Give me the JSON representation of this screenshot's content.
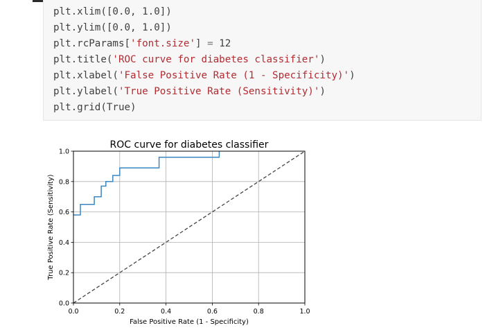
{
  "code": {
    "lines": [
      [
        {
          "t": "plt.xlim(["
        },
        {
          "t": "0.0",
          "c": "num"
        },
        {
          "t": ", "
        },
        {
          "t": "1.0",
          "c": "num"
        },
        {
          "t": "])"
        }
      ],
      [
        {
          "t": "plt.ylim(["
        },
        {
          "t": "0.0",
          "c": "num"
        },
        {
          "t": ", "
        },
        {
          "t": "1.0",
          "c": "num"
        },
        {
          "t": "])"
        }
      ],
      [
        {
          "t": "plt.rcParams["
        },
        {
          "t": "'font.size'",
          "c": "str"
        },
        {
          "t": "] "
        },
        {
          "t": "=",
          "c": "op"
        },
        {
          "t": " 12"
        }
      ],
      [
        {
          "t": "plt.title("
        },
        {
          "t": "'ROC curve for diabetes classifier'",
          "c": "str"
        },
        {
          "t": ")"
        }
      ],
      [
        {
          "t": "plt.xlabel("
        },
        {
          "t": "'False Positive Rate (1 - Specificity)'",
          "c": "str"
        },
        {
          "t": ")"
        }
      ],
      [
        {
          "t": "plt.ylabel("
        },
        {
          "t": "'True Positive Rate (Sensitivity)'",
          "c": "str"
        },
        {
          "t": ")"
        }
      ],
      [
        {
          "t": "plt.grid("
        },
        {
          "t": "True",
          "c": "kw"
        },
        {
          "t": ")"
        }
      ]
    ]
  },
  "chart_data": {
    "type": "line",
    "title": "ROC curve for diabetes classifier",
    "xlabel": "False Positive Rate (1 - Specificity)",
    "ylabel": "True Positive Rate (Sensitivity)",
    "xlim": [
      0.0,
      1.0
    ],
    "ylim": [
      0.0,
      1.0
    ],
    "xticks": [
      "0.0",
      "0.2",
      "0.4",
      "0.6",
      "0.8",
      "1.0"
    ],
    "yticks": [
      "0.0",
      "0.2",
      "0.4",
      "0.6",
      "0.8",
      "1.0"
    ],
    "grid": true,
    "series": [
      {
        "color": "#3a86c1",
        "style": "solid",
        "step_points": [
          [
            0.0,
            0.58
          ],
          [
            0.03,
            0.58
          ],
          [
            0.03,
            0.65
          ],
          [
            0.09,
            0.65
          ],
          [
            0.09,
            0.7
          ],
          [
            0.12,
            0.7
          ],
          [
            0.12,
            0.77
          ],
          [
            0.14,
            0.77
          ],
          [
            0.14,
            0.8
          ],
          [
            0.17,
            0.8
          ],
          [
            0.17,
            0.84
          ],
          [
            0.2,
            0.84
          ],
          [
            0.2,
            0.89
          ],
          [
            0.37,
            0.89
          ],
          [
            0.37,
            0.96
          ],
          [
            0.63,
            0.96
          ],
          [
            0.63,
            1.0
          ]
        ]
      },
      {
        "color": "#444444",
        "style": "dashed",
        "step_points": [
          [
            0.0,
            0.0
          ],
          [
            1.0,
            1.0
          ]
        ]
      }
    ]
  }
}
